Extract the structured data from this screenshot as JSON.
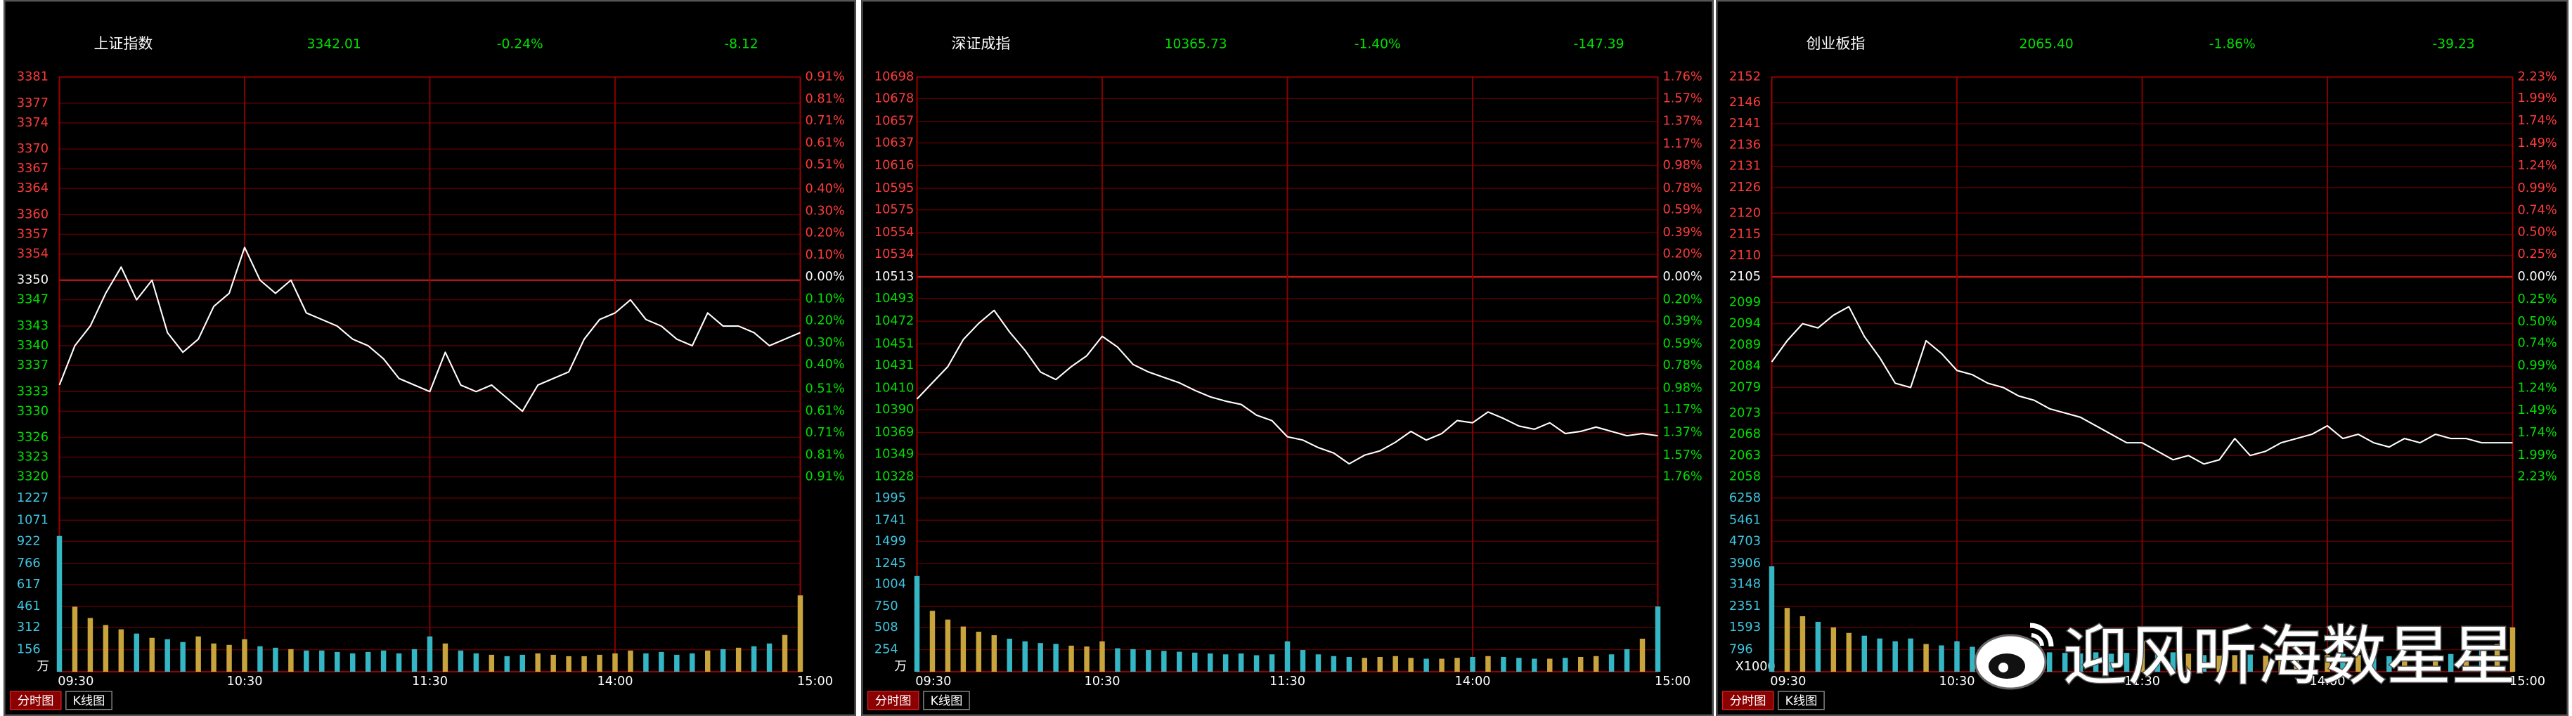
{
  "chart_data": [
    {
      "type": "line",
      "title": "上证指数",
      "quote": [
        "3342.01",
        "-0.24%",
        "-8.12"
      ],
      "color": "#ffffff",
      "grid": true,
      "x": [
        "09:30",
        "09:35",
        "09:40",
        "09:45",
        "09:50",
        "09:55",
        "10:00",
        "10:05",
        "10:10",
        "10:15",
        "10:20",
        "10:25",
        "10:30",
        "10:35",
        "10:40",
        "10:45",
        "10:50",
        "10:55",
        "11:00",
        "11:05",
        "11:10",
        "11:15",
        "11:20",
        "11:25",
        "11:30",
        "13:05",
        "13:10",
        "13:15",
        "13:20",
        "13:25",
        "13:30",
        "13:35",
        "13:40",
        "13:45",
        "13:50",
        "13:55",
        "14:00",
        "14:05",
        "14:10",
        "14:15",
        "14:20",
        "14:25",
        "14:30",
        "14:35",
        "14:40",
        "14:45",
        "14:50",
        "14:55",
        "15:00"
      ],
      "values": [
        3334,
        3340,
        3343,
        3348,
        3352,
        3347,
        3350,
        3342,
        3339,
        3341,
        3346,
        3348,
        3355,
        3350,
        3348,
        3350,
        3345,
        3344,
        3343,
        3341,
        3340,
        3338,
        3335,
        3334,
        3333,
        3339,
        3334,
        3333,
        3334,
        3332,
        3330,
        3334,
        3335,
        3336,
        3341,
        3344,
        3345,
        3347,
        3344,
        3343,
        3341,
        3340,
        3345,
        3343,
        3343,
        3342,
        3340,
        3341,
        3342
      ],
      "ylim": [
        3320,
        3381
      ],
      "yticks": [
        3381,
        3377,
        3374,
        3370,
        3367,
        3364,
        3360,
        3357,
        3354,
        3350,
        3347,
        3343,
        3340,
        3337,
        3333,
        3330,
        3326,
        3323,
        3320
      ],
      "y2lim": [
        -0.91,
        0.91
      ],
      "y2ticks": [
        {
          "value": 0.91,
          "label": "0.91%"
        },
        {
          "value": 0.81,
          "label": "0.81%"
        },
        {
          "value": 0.71,
          "label": "0.71%"
        },
        {
          "value": 0.61,
          "label": "0.61%"
        },
        {
          "value": 0.51,
          "label": "0.51%"
        },
        {
          "value": 0.4,
          "label": "0.40%"
        },
        {
          "value": 0.3,
          "label": "0.30%"
        },
        {
          "value": 0.2,
          "label": "0.20%"
        },
        {
          "value": 0.1,
          "label": "0.10%"
        },
        {
          "value": 0,
          "label": "0.00%"
        },
        {
          "value": -0.1,
          "label": "0.10%"
        },
        {
          "value": -0.2,
          "label": "0.20%"
        },
        {
          "value": -0.3,
          "label": "0.30%"
        },
        {
          "value": -0.4,
          "label": "0.40%"
        },
        {
          "value": -0.51,
          "label": "0.51%"
        },
        {
          "value": -0.61,
          "label": "0.61%"
        },
        {
          "value": -0.71,
          "label": "0.71%"
        },
        {
          "value": -0.81,
          "label": "0.81%"
        },
        {
          "value": -0.91,
          "label": "0.91%"
        }
      ],
      "xticks": [
        "09:30",
        "10:30",
        "11:30",
        "14:00",
        "15:00"
      ],
      "volume": {
        "values": [
          960,
          460,
          380,
          330,
          300,
          270,
          240,
          230,
          210,
          250,
          200,
          190,
          230,
          180,
          170,
          160,
          150,
          150,
          140,
          130,
          140,
          150,
          130,
          160,
          250,
          200,
          150,
          130,
          120,
          110,
          120,
          130,
          120,
          110,
          110,
          120,
          130,
          150,
          130,
          140,
          120,
          130,
          150,
          160,
          170,
          180,
          200,
          260,
          540
        ],
        "up_color": "#c9a43c",
        "down_color": "#35b6c4",
        "ylim": [
          0,
          1378
        ],
        "yticks": [
          {
            "value": 0,
            "label": "万"
          },
          156,
          312,
          461,
          617,
          766,
          922,
          1071,
          1227
        ]
      },
      "buttons": [
        "分时图",
        "K线图"
      ]
    },
    {
      "type": "line",
      "title": "深证成指",
      "quote": [
        "10365.73",
        "-1.40%",
        "-147.39"
      ],
      "color": "#ffffff",
      "grid": true,
      "x": [
        "09:30",
        "09:35",
        "09:40",
        "09:45",
        "09:50",
        "09:55",
        "10:00",
        "10:05",
        "10:10",
        "10:15",
        "10:20",
        "10:25",
        "10:30",
        "10:35",
        "10:40",
        "10:45",
        "10:50",
        "10:55",
        "11:00",
        "11:05",
        "11:10",
        "11:15",
        "11:20",
        "11:25",
        "11:30",
        "13:05",
        "13:10",
        "13:15",
        "13:20",
        "13:25",
        "13:30",
        "13:35",
        "13:40",
        "13:45",
        "13:50",
        "13:55",
        "14:00",
        "14:05",
        "14:10",
        "14:15",
        "14:20",
        "14:25",
        "14:30",
        "14:35",
        "14:40",
        "14:45",
        "14:50",
        "14:55",
        "15:00"
      ],
      "values": [
        10400,
        10415,
        10430,
        10455,
        10470,
        10482,
        10462,
        10445,
        10425,
        10418,
        10430,
        10440,
        10458,
        10448,
        10432,
        10425,
        10420,
        10415,
        10408,
        10402,
        10398,
        10395,
        10385,
        10380,
        10365,
        10362,
        10355,
        10350,
        10340,
        10348,
        10352,
        10360,
        10370,
        10362,
        10368,
        10380,
        10378,
        10388,
        10382,
        10375,
        10372,
        10378,
        10368,
        10370,
        10374,
        10370,
        10366,
        10368,
        10366
      ],
      "ylim": [
        10328,
        10698
      ],
      "yticks": [
        10698,
        10678,
        10657,
        10637,
        10616,
        10595,
        10575,
        10554,
        10534,
        10513,
        10493,
        10472,
        10451,
        10431,
        10410,
        10390,
        10369,
        10349,
        10328
      ],
      "y2lim": [
        -1.76,
        1.76
      ],
      "y2ticks": [
        {
          "value": 1.76,
          "label": "1.76%"
        },
        {
          "value": 1.57,
          "label": "1.57%"
        },
        {
          "value": 1.37,
          "label": "1.37%"
        },
        {
          "value": 1.17,
          "label": "1.17%"
        },
        {
          "value": 0.98,
          "label": "0.98%"
        },
        {
          "value": 0.78,
          "label": "0.78%"
        },
        {
          "value": 0.59,
          "label": "0.59%"
        },
        {
          "value": 0.39,
          "label": "0.39%"
        },
        {
          "value": 0.2,
          "label": "0.20%"
        },
        {
          "value": 0,
          "label": "0.00%"
        },
        {
          "value": -0.2,
          "label": "0.20%"
        },
        {
          "value": -0.39,
          "label": "0.39%"
        },
        {
          "value": -0.59,
          "label": "0.59%"
        },
        {
          "value": -0.78,
          "label": "0.78%"
        },
        {
          "value": -0.98,
          "label": "0.98%"
        },
        {
          "value": -1.17,
          "label": "1.17%"
        },
        {
          "value": -1.37,
          "label": "1.37%"
        },
        {
          "value": -1.57,
          "label": "1.57%"
        },
        {
          "value": -1.76,
          "label": "1.76%"
        }
      ],
      "xticks": [
        "09:30",
        "10:30",
        "11:30",
        "14:00",
        "15:00"
      ],
      "volume": {
        "values": [
          1100,
          700,
          600,
          520,
          460,
          420,
          380,
          350,
          330,
          320,
          300,
          290,
          350,
          270,
          260,
          250,
          240,
          230,
          220,
          210,
          200,
          210,
          190,
          200,
          350,
          250,
          200,
          180,
          170,
          160,
          170,
          180,
          160,
          150,
          150,
          160,
          170,
          180,
          170,
          160,
          150,
          150,
          160,
          170,
          180,
          200,
          260,
          380,
          750
        ],
        "up_color": "#c9a43c",
        "down_color": "#35b6c4",
        "ylim": [
          0,
          2240
        ],
        "yticks": [
          {
            "value": 0,
            "label": "万"
          },
          254,
          508,
          750,
          1004,
          1245,
          1499,
          1741,
          1995
        ]
      },
      "buttons": [
        "分时图",
        "K线图"
      ]
    },
    {
      "type": "line",
      "title": "创业板指",
      "quote": [
        "2065.40",
        "-1.86%",
        "-39.23"
      ],
      "color": "#ffffff",
      "grid": true,
      "x": [
        "09:30",
        "09:35",
        "09:40",
        "09:45",
        "09:50",
        "09:55",
        "10:00",
        "10:05",
        "10:10",
        "10:15",
        "10:20",
        "10:25",
        "10:30",
        "10:35",
        "10:40",
        "10:45",
        "10:50",
        "10:55",
        "11:00",
        "11:05",
        "11:10",
        "11:15",
        "11:20",
        "11:25",
        "11:30",
        "13:05",
        "13:10",
        "13:15",
        "13:20",
        "13:25",
        "13:30",
        "13:35",
        "13:40",
        "13:45",
        "13:50",
        "13:55",
        "14:00",
        "14:05",
        "14:10",
        "14:15",
        "14:20",
        "14:25",
        "14:30",
        "14:35",
        "14:40",
        "14:45",
        "14:50",
        "14:55",
        "15:00"
      ],
      "values": [
        2085,
        2090,
        2094,
        2093,
        2096,
        2098,
        2091,
        2086,
        2080,
        2079,
        2090,
        2087,
        2083,
        2082,
        2080,
        2079,
        2077,
        2076,
        2074,
        2073,
        2072,
        2070,
        2068,
        2066,
        2066,
        2064,
        2062,
        2063,
        2061,
        2062,
        2067,
        2063,
        2064,
        2066,
        2067,
        2068,
        2070,
        2067,
        2068,
        2066,
        2065,
        2067,
        2066,
        2068,
        2067,
        2067,
        2066,
        2066,
        2066
      ],
      "ylim": [
        2058,
        2152
      ],
      "yticks": [
        2152,
        2146,
        2141,
        2136,
        2131,
        2126,
        2120,
        2115,
        2110,
        2105,
        2099,
        2094,
        2089,
        2084,
        2079,
        2073,
        2068,
        2063,
        2058
      ],
      "y2lim": [
        -2.23,
        2.23
      ],
      "y2ticks": [
        {
          "value": 2.23,
          "label": "2.23%"
        },
        {
          "value": 1.99,
          "label": "1.99%"
        },
        {
          "value": 1.74,
          "label": "1.74%"
        },
        {
          "value": 1.49,
          "label": "1.49%"
        },
        {
          "value": 1.24,
          "label": "1.24%"
        },
        {
          "value": 0.99,
          "label": "0.99%"
        },
        {
          "value": 0.74,
          "label": "0.74%"
        },
        {
          "value": 0.5,
          "label": "0.50%"
        },
        {
          "value": 0.25,
          "label": "0.25%"
        },
        {
          "value": 0,
          "label": "0.00%"
        },
        {
          "value": -0.25,
          "label": "0.25%"
        },
        {
          "value": -0.5,
          "label": "0.50%"
        },
        {
          "value": -0.74,
          "label": "0.74%"
        },
        {
          "value": -0.99,
          "label": "0.99%"
        },
        {
          "value": -1.24,
          "label": "1.24%"
        },
        {
          "value": -1.49,
          "label": "1.49%"
        },
        {
          "value": -1.74,
          "label": "1.74%"
        },
        {
          "value": -1.99,
          "label": "1.99%"
        },
        {
          "value": -2.23,
          "label": "2.23%"
        }
      ],
      "xticks": [
        "09:30",
        "10:30",
        "11:30",
        "14:00",
        "15:00"
      ],
      "volume": {
        "values": [
          3800,
          2300,
          2000,
          1800,
          1600,
          1400,
          1300,
          1200,
          1100,
          1200,
          1000,
          950,
          1100,
          900,
          850,
          800,
          760,
          720,
          700,
          680,
          660,
          700,
          650,
          680,
          1100,
          800,
          700,
          650,
          600,
          580,
          600,
          620,
          580,
          560,
          560,
          580,
          600,
          640,
          600,
          580,
          560,
          560,
          580,
          600,
          640,
          700,
          800,
          1000,
          1600
        ],
        "up_color": "#c9a43c",
        "down_color": "#35b6c4",
        "ylim": [
          0,
          7025
        ],
        "yticks": [
          {
            "value": 0,
            "label": "X1000"
          },
          796,
          1593,
          2351,
          3148,
          3906,
          4703,
          5461,
          6258
        ]
      },
      "buttons": [
        "分时图",
        "K线图"
      ]
    }
  ],
  "watermark": "迎风听海数星星"
}
